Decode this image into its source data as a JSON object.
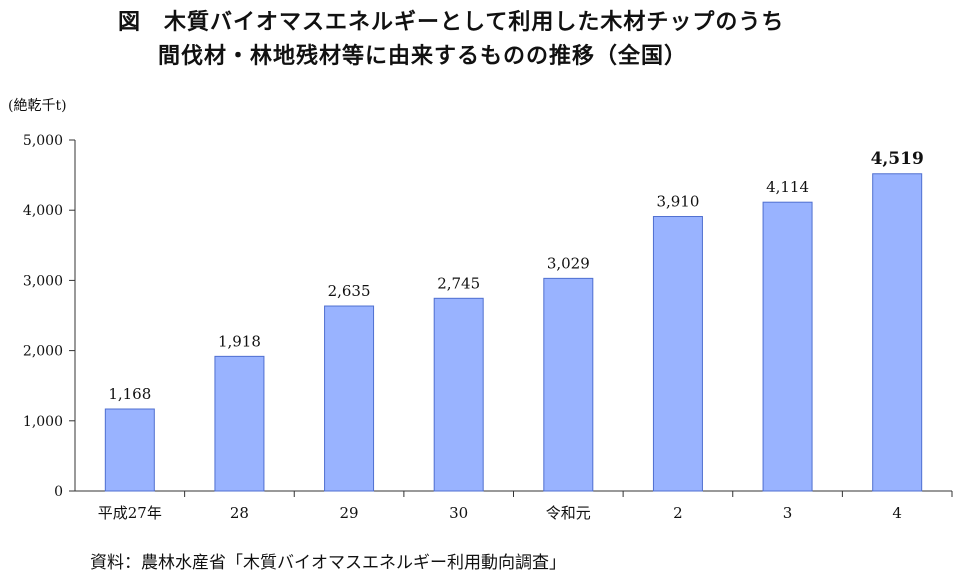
{
  "title_line1": "図　木質バイオマスエネルギーとして利用した木材チップのうち",
  "title_line2": "間伐材・林地残材等に由来するものの推移（全国）",
  "unit_label": "(絶乾千t)",
  "source": "資料：農林水産省「木質バイオマスエネルギー利用動向調査」",
  "colors": {
    "bar_fill": "#99B3FF",
    "bar_stroke": "#4F6FD0",
    "axis": "#333333"
  },
  "chart_data": {
    "type": "bar",
    "title": "木質バイオマスエネルギーとして利用した木材チップのうち間伐材・林地残材等に由来するものの推移（全国）",
    "categories": [
      "平成27年",
      "28",
      "29",
      "30",
      "令和元",
      "2",
      "3",
      "4"
    ],
    "values": [
      1168,
      1918,
      2635,
      2745,
      3029,
      3910,
      4114,
      4519
    ],
    "value_labels": [
      "1,168",
      "1,918",
      "2,635",
      "2,745",
      "3,029",
      "3,910",
      "4,114",
      "4,519"
    ],
    "ylabel": "(絶乾千t)",
    "ylim": [
      0,
      5000
    ],
    "yticks": [
      0,
      1000,
      2000,
      3000,
      4000,
      5000
    ],
    "ytick_labels": [
      "0",
      "1,000",
      "2,000",
      "3,000",
      "4,000",
      "5,000"
    ],
    "highlight_last_label": true,
    "grid": false,
    "legend": false
  }
}
